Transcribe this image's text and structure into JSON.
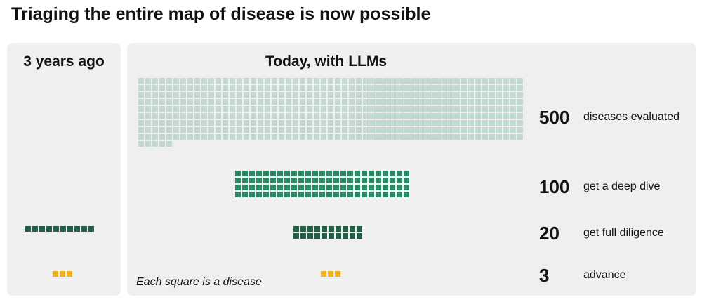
{
  "title": "Triaging the entire map of disease is now possible",
  "panels": {
    "left": {
      "heading": "3 years ago"
    },
    "right": {
      "heading": "Today, with LLMs"
    }
  },
  "stages": [
    {
      "key": "evaluated",
      "count": "500",
      "label": "diseases evaluated",
      "color": "#c2d8d0"
    },
    {
      "key": "deep_dive",
      "count": "100",
      "label": "get a deep dive",
      "color": "#2a8a66"
    },
    {
      "key": "diligence",
      "count": "20",
      "label": "get full diligence",
      "color": "#215f47"
    },
    {
      "key": "advance",
      "count": "3",
      "label": "advance",
      "color": "#f2b01a"
    }
  ],
  "past_counts": {
    "diligence": 10,
    "advance": 3
  },
  "caption": "Each square is a disease"
}
